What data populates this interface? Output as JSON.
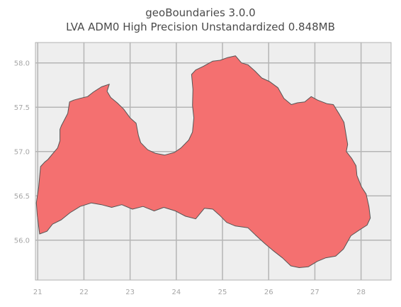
{
  "title": {
    "line1": "geoBoundaries 3.0.0",
    "line2": "LVA ADM0 High Precision Unstandardized 0.848MB"
  },
  "map": {
    "xlim": [
      20.95,
      28.65
    ],
    "ylim": [
      55.55,
      58.23
    ],
    "x_ticks": [
      "21",
      "22",
      "23",
      "24",
      "25",
      "26",
      "27",
      "28"
    ],
    "y_ticks": [
      "56.0",
      "56.5",
      "57.0",
      "57.5",
      "58.0"
    ],
    "grid": true,
    "fill_color": "#f47070",
    "edge_color": "#555555",
    "background_color": "#eeeeee",
    "boundary": [
      [
        21.04,
        56.07
      ],
      [
        20.99,
        56.28
      ],
      [
        20.97,
        56.42
      ],
      [
        21.02,
        56.6
      ],
      [
        21.06,
        56.83
      ],
      [
        21.15,
        56.88
      ],
      [
        21.22,
        56.91
      ],
      [
        21.33,
        56.98
      ],
      [
        21.43,
        57.04
      ],
      [
        21.48,
        57.12
      ],
      [
        21.48,
        57.25
      ],
      [
        21.51,
        57.29
      ],
      [
        21.65,
        57.43
      ],
      [
        21.69,
        57.56
      ],
      [
        21.78,
        57.58
      ],
      [
        21.92,
        57.6
      ],
      [
        22.08,
        57.62
      ],
      [
        22.2,
        57.67
      ],
      [
        22.38,
        57.73
      ],
      [
        22.55,
        57.76
      ],
      [
        22.5,
        57.68
      ],
      [
        22.58,
        57.61
      ],
      [
        22.72,
        57.55
      ],
      [
        22.86,
        57.48
      ],
      [
        23.0,
        57.38
      ],
      [
        23.13,
        57.32
      ],
      [
        23.18,
        57.18
      ],
      [
        23.23,
        57.1
      ],
      [
        23.38,
        57.02
      ],
      [
        23.55,
        56.98
      ],
      [
        23.75,
        56.96
      ],
      [
        23.96,
        56.99
      ],
      [
        24.1,
        57.04
      ],
      [
        24.27,
        57.13
      ],
      [
        24.35,
        57.22
      ],
      [
        24.38,
        57.38
      ],
      [
        24.35,
        57.52
      ],
      [
        24.36,
        57.7
      ],
      [
        24.33,
        57.87
      ],
      [
        24.42,
        57.92
      ],
      [
        24.58,
        57.96
      ],
      [
        24.79,
        58.02
      ],
      [
        24.95,
        58.03
      ],
      [
        25.11,
        58.06
      ],
      [
        25.28,
        58.08
      ],
      [
        25.41,
        58.0
      ],
      [
        25.55,
        57.98
      ],
      [
        25.7,
        57.91
      ],
      [
        25.85,
        57.83
      ],
      [
        26.02,
        57.79
      ],
      [
        26.2,
        57.72
      ],
      [
        26.33,
        57.6
      ],
      [
        26.49,
        57.53
      ],
      [
        26.62,
        57.55
      ],
      [
        26.78,
        57.56
      ],
      [
        26.92,
        57.62
      ],
      [
        27.06,
        57.58
      ],
      [
        27.26,
        57.54
      ],
      [
        27.4,
        57.53
      ],
      [
        27.53,
        57.42
      ],
      [
        27.63,
        57.33
      ],
      [
        27.71,
        57.08
      ],
      [
        27.68,
        57.0
      ],
      [
        27.8,
        56.92
      ],
      [
        27.89,
        56.84
      ],
      [
        27.91,
        56.73
      ],
      [
        28.01,
        56.6
      ],
      [
        28.11,
        56.52
      ],
      [
        28.17,
        56.38
      ],
      [
        28.2,
        56.25
      ],
      [
        28.13,
        56.17
      ],
      [
        27.98,
        56.12
      ],
      [
        27.78,
        56.05
      ],
      [
        27.62,
        55.9
      ],
      [
        27.45,
        55.82
      ],
      [
        27.23,
        55.8
      ],
      [
        27.05,
        55.76
      ],
      [
        26.86,
        55.7
      ],
      [
        26.66,
        55.69
      ],
      [
        26.48,
        55.71
      ],
      [
        26.3,
        55.8
      ],
      [
        26.1,
        55.88
      ],
      [
        25.92,
        55.96
      ],
      [
        25.71,
        56.06
      ],
      [
        25.55,
        56.14
      ],
      [
        25.28,
        56.16
      ],
      [
        25.09,
        56.2
      ],
      [
        24.94,
        56.28
      ],
      [
        24.79,
        56.35
      ],
      [
        24.61,
        56.36
      ],
      [
        24.42,
        56.24
      ],
      [
        24.2,
        56.27
      ],
      [
        23.98,
        56.33
      ],
      [
        23.73,
        56.37
      ],
      [
        23.52,
        56.33
      ],
      [
        23.28,
        56.38
      ],
      [
        23.05,
        56.35
      ],
      [
        22.82,
        56.4
      ],
      [
        22.6,
        56.37
      ],
      [
        22.38,
        56.4
      ],
      [
        22.16,
        56.42
      ],
      [
        21.92,
        56.38
      ],
      [
        21.7,
        56.31
      ],
      [
        21.51,
        56.23
      ],
      [
        21.32,
        56.18
      ],
      [
        21.2,
        56.1
      ],
      [
        21.04,
        56.07
      ]
    ]
  }
}
